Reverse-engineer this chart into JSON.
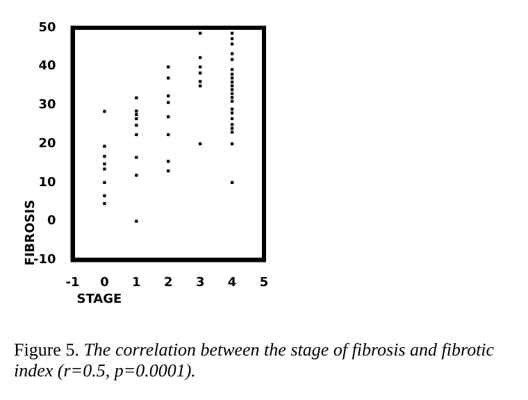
{
  "chart_data": {
    "type": "scatter",
    "xlabel": "STAGE",
    "ylabel": "FIBROSIS",
    "xlim": [
      -1,
      5
    ],
    "xticks": [
      -1,
      0,
      1,
      2,
      3,
      4,
      5
    ],
    "ylim": [
      -10,
      50
    ],
    "yticks": [
      -10,
      0,
      10,
      20,
      30,
      40,
      50
    ],
    "grid": false,
    "legend": false,
    "marker": "square",
    "series": [
      {
        "color": "#000000",
        "x": [
          0,
          0,
          0,
          0,
          0,
          0,
          0,
          0,
          1,
          1,
          1,
          1,
          1,
          1,
          1,
          1,
          1,
          2,
          2,
          2,
          2,
          2,
          2,
          2,
          2,
          3,
          3,
          3,
          3,
          3,
          3,
          3,
          4,
          4,
          4,
          4,
          4,
          4,
          4,
          4,
          4,
          4,
          4,
          4,
          4,
          4,
          4,
          4,
          4,
          4,
          4,
          4,
          4,
          4
        ],
        "values": [
          28.4,
          19.4,
          16.8,
          14.8,
          13.5,
          10,
          6.6,
          4.6,
          31.9,
          28.5,
          27.6,
          26.5,
          24.8,
          22.4,
          16.5,
          11.9,
          0,
          39.9,
          37,
          32.4,
          30.7,
          27,
          22.4,
          15.5,
          13,
          48.6,
          42.3,
          39.9,
          38.3,
          36.1,
          35,
          20,
          48.6,
          47.2,
          45.8,
          43.3,
          41.8,
          39.2,
          38,
          37,
          36,
          35,
          34,
          33,
          32,
          31,
          29,
          28,
          26.5,
          25,
          24,
          23,
          20,
          10
        ]
      }
    ],
    "annotations": [
      "Figure 5. The correlation between the stage of fibrosis and fibrotic index (r=0.5, p=0.0001)."
    ]
  }
}
